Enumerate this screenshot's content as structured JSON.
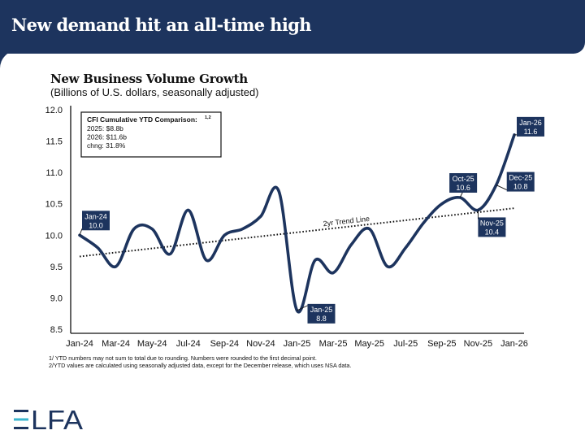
{
  "header": {
    "title": "New demand hit an all-time high"
  },
  "chart_data": {
    "type": "line",
    "title": "New Business Volume Growth",
    "subtitle": "(Billions of U.S. dollars, seasonally adjusted)",
    "xlabel": "",
    "ylabel": "",
    "ylim": [
      8.5,
      12.0
    ],
    "yticks": [
      "12.0",
      "11.5",
      "11.0",
      "10.5",
      "10.0",
      "9.5",
      "9.0",
      "8.5"
    ],
    "ytick_values": [
      12.0,
      11.5,
      11.0,
      10.5,
      10.0,
      9.5,
      9.0,
      8.5
    ],
    "x": [
      "Jan-24",
      "Feb-24",
      "Mar-24",
      "Apr-24",
      "May-24",
      "Jun-24",
      "Jul-24",
      "Aug-24",
      "Sep-24",
      "Oct-24",
      "Nov-24",
      "Dec-24",
      "Jan-25",
      "Feb-25",
      "Mar-25",
      "Apr-25",
      "May-25",
      "Jun-25",
      "Jul-25",
      "Aug-25",
      "Sep-25",
      "Oct-25",
      "Nov-25",
      "Dec-25",
      "Jan-26"
    ],
    "xticks": [
      "Jan-24",
      "Mar-24",
      "May-24",
      "Jul-24",
      "Sep-24",
      "Nov-24",
      "Jan-25",
      "Mar-25",
      "May-25",
      "Jul-25",
      "Sep-25",
      "Nov-25",
      "Jan-26"
    ],
    "grid": false,
    "series": [
      {
        "name": "New Business Volume",
        "color": "#1d345e",
        "values": [
          10.0,
          9.8,
          9.5,
          10.1,
          10.1,
          9.7,
          10.4,
          9.6,
          10.0,
          10.1,
          10.3,
          10.7,
          8.8,
          9.6,
          9.4,
          9.85,
          10.1,
          9.5,
          9.8,
          10.2,
          10.5,
          10.6,
          10.4,
          10.8,
          11.6
        ]
      },
      {
        "name": "2yr Trend Line",
        "style": "dotted",
        "color": "#111111",
        "start": 9.66,
        "end": 10.43
      }
    ],
    "trend_label": "2yr Trend Line",
    "data_labels": [
      {
        "month": "Jan-24",
        "value": "10.0"
      },
      {
        "month": "Jan-25",
        "value": "8.8"
      },
      {
        "month": "Oct-25",
        "value": "10.6"
      },
      {
        "month": "Nov-25",
        "value": "10.4"
      },
      {
        "month": "Dec-25",
        "value": "10.8"
      },
      {
        "month": "Jan-26",
        "value": "11.6"
      }
    ],
    "annotation_box": {
      "title": "CFI Cumulative YTD Comparison:",
      "title_sup": "1,2",
      "lines": [
        "2025: $8.8b",
        "2026: $11.6b",
        "chng: 31.8%"
      ]
    }
  },
  "footnotes": [
    "1/ YTD numbers may not sum to total due to rounding. Numbers were rounded to the first decimal point.",
    "2/YTD values are calculated using seasonally adjusted data, except for the December release, which uses NSA data."
  ],
  "logo": {
    "text": "ELFA",
    "accent": "#3ab6cf",
    "color": "#1d345e"
  }
}
